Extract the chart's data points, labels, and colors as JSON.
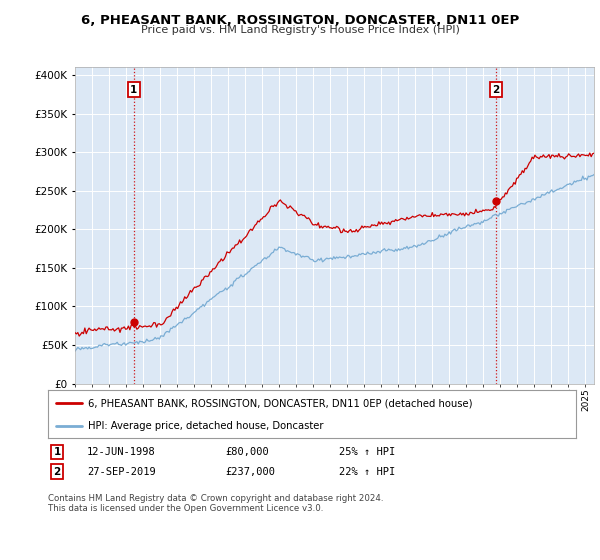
{
  "title": "6, PHEASANT BANK, ROSSINGTON, DONCASTER, DN11 0EP",
  "subtitle": "Price paid vs. HM Land Registry's House Price Index (HPI)",
  "ylabel_ticks": [
    0,
    50000,
    100000,
    150000,
    200000,
    250000,
    300000,
    350000,
    400000
  ],
  "x_start_year": 1995,
  "x_end_year": 2025,
  "transaction1": {
    "label": "1",
    "date": "12-JUN-1998",
    "price": 80000,
    "hpi_pct": "25%",
    "direction": "↑",
    "year": 1998.458
  },
  "transaction2": {
    "label": "2",
    "date": "27-SEP-2019",
    "price": 237000,
    "hpi_pct": "22%",
    "direction": "↑",
    "year": 2019.75
  },
  "legend_line1": "6, PHEASANT BANK, ROSSINGTON, DONCASTER, DN11 0EP (detached house)",
  "legend_line2": "HPI: Average price, detached house, Doncaster",
  "footer": "Contains HM Land Registry data © Crown copyright and database right 2024.\nThis data is licensed under the Open Government Licence v3.0.",
  "line_color_red": "#cc0000",
  "line_color_blue": "#7aadd4",
  "bg_plot_color": "#dce8f5",
  "background_color": "#ffffff",
  "grid_color": "#ffffff"
}
